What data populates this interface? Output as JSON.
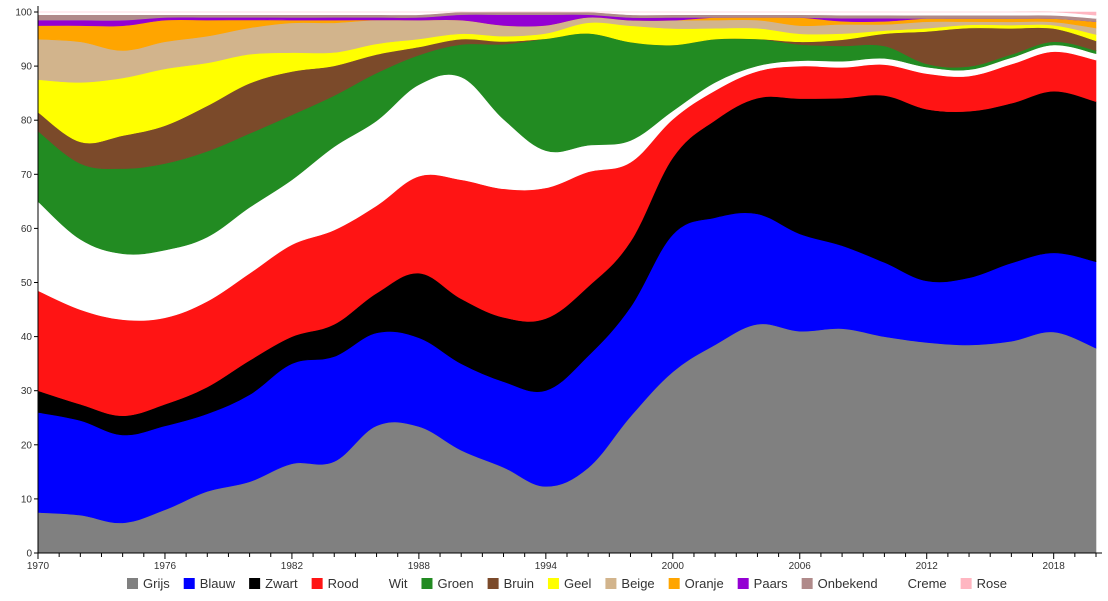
{
  "chart_data": {
    "type": "area",
    "stacked": true,
    "normalized_percent": true,
    "ylim": [
      0,
      100
    ],
    "y_ticks": [
      0,
      10,
      20,
      30,
      40,
      50,
      60,
      70,
      80,
      90,
      100
    ],
    "x_ticks": [
      1970,
      1976,
      1982,
      1988,
      1994,
      2000,
      2006,
      2012,
      2018
    ],
    "xlim": [
      1970,
      2020
    ],
    "grid": false,
    "legend_position": "bottom",
    "x": [
      1970,
      1972,
      1974,
      1976,
      1978,
      1980,
      1982,
      1984,
      1986,
      1988,
      1990,
      1992,
      1994,
      1996,
      1998,
      2000,
      2002,
      2004,
      2006,
      2008,
      2010,
      2012,
      2014,
      2016,
      2018,
      2020
    ],
    "series": [
      {
        "name": "Grijs",
        "color": "#808080",
        "values": [
          7.5,
          7,
          5.5,
          8,
          11.5,
          13.5,
          16.5,
          17,
          24,
          23.5,
          19,
          16,
          12.5,
          16,
          25,
          33,
          38.5,
          42.5,
          41,
          36.5,
          35,
          32.5,
          32.5,
          32.5,
          33.5,
          32
        ]
      },
      {
        "name": "Blauw",
        "color": "#0000ff",
        "values": [
          18.5,
          17.5,
          16,
          15.5,
          14.5,
          16.5,
          18.5,
          19.5,
          17.5,
          16.5,
          16,
          16,
          18,
          21,
          20,
          25,
          23.5,
          20.5,
          18,
          13.5,
          12,
          9.5,
          10.5,
          12,
          12,
          13.5
        ]
      },
      {
        "name": "Zwart",
        "color": "#000000",
        "values": [
          4,
          3,
          3.5,
          4,
          5,
          6.5,
          5,
          6,
          7.5,
          12,
          12,
          12,
          13.5,
          13,
          12,
          14,
          18,
          21.5,
          25,
          24,
          27,
          26.5,
          26,
          24.5,
          24.5,
          25
        ]
      },
      {
        "name": "Rood",
        "color": "#ff1414",
        "values": [
          18.5,
          17.5,
          17.5,
          16,
          16,
          16.5,
          17,
          17.5,
          16.5,
          18,
          22,
          24,
          24.5,
          21.5,
          14.5,
          7,
          5.5,
          5,
          6,
          5,
          5,
          5.5,
          5.5,
          6,
          6,
          6.5
        ]
      },
      {
        "name": "Wit",
        "color": "#ffffff",
        "values": [
          16.5,
          13,
          12,
          12.5,
          12,
          12.5,
          12,
          15.5,
          16,
          17,
          19,
          13,
          7,
          5,
          4,
          1.5,
          1.5,
          1,
          1,
          1,
          1,
          1,
          1,
          1,
          1,
          1
        ]
      },
      {
        "name": "Groen",
        "color": "#228b22",
        "values": [
          13,
          14,
          15.5,
          16,
          16,
          14,
          12,
          9.5,
          9,
          5.5,
          6,
          14,
          21,
          21,
          18,
          12,
          8,
          5,
          3,
          2.5,
          2,
          0.5,
          0.5,
          0.5,
          0.5,
          0.5
        ]
      },
      {
        "name": "Bruin",
        "color": "#7b4a2a",
        "values": [
          3.5,
          4,
          6,
          7,
          8.5,
          9.5,
          8,
          5.5,
          3.5,
          1.5,
          1,
          0.5,
          0,
          0,
          0,
          0,
          0,
          0,
          0.5,
          1,
          2,
          5,
          6,
          4,
          2,
          1.5
        ]
      },
      {
        "name": "Geel",
        "color": "#ffff00",
        "values": [
          6,
          11,
          10.5,
          10.5,
          8,
          5.5,
          3.5,
          2.5,
          2,
          1.5,
          1,
          1,
          1,
          2,
          3,
          3,
          2,
          2,
          1.5,
          1,
          0.5,
          0.5,
          0.5,
          0.5,
          0.5,
          1
        ]
      },
      {
        "name": "Beige",
        "color": "#d2b48c",
        "values": [
          7.5,
          7.5,
          5,
          5,
          5,
          5,
          5.5,
          5.5,
          4.5,
          3.5,
          2.5,
          2,
          1.5,
          1,
          1,
          1.5,
          1.5,
          1.5,
          1.5,
          1.5,
          1,
          1,
          0.5,
          0.5,
          0.5,
          1
        ]
      },
      {
        "name": "Oranje",
        "color": "#ffa500",
        "values": [
          2.5,
          3,
          4.5,
          4,
          3,
          1.5,
          0.5,
          0.5,
          0,
          0,
          0,
          0,
          0,
          0,
          0,
          0,
          0.5,
          0.5,
          1.5,
          0.5,
          0.5,
          0.5,
          0.5,
          0.5,
          0.5,
          1
        ]
      },
      {
        "name": "Paars",
        "color": "#9400d3",
        "values": [
          1,
          1,
          1,
          0.5,
          0.5,
          0.5,
          0.5,
          0.5,
          0.5,
          0.5,
          1,
          2,
          2,
          0.5,
          0.5,
          0.5,
          0,
          0,
          0,
          0.5,
          0.5,
          0,
          0,
          0,
          0,
          0
        ]
      },
      {
        "name": "Onbekend",
        "color": "#b08a8a",
        "values": [
          1,
          1,
          1,
          0.5,
          0.5,
          0.5,
          0.5,
          0.5,
          0.5,
          0.5,
          0.5,
          0.5,
          0.5,
          0.5,
          0.5,
          0.5,
          0.5,
          0.5,
          0.5,
          0.5,
          0.5,
          0.5,
          0.5,
          0.5,
          0.5,
          0.5
        ]
      },
      {
        "name": "Creme",
        "color": "#ffffff",
        "values": [
          0.5,
          0.5,
          0.5,
          0.5,
          0.5,
          0.5,
          0.5,
          0.5,
          0.5,
          0.5,
          0,
          0,
          0,
          0,
          0.5,
          0.5,
          0.5,
          0.5,
          0.5,
          0.5,
          0.5,
          0.5,
          0.5,
          0.5,
          0.5,
          0.5
        ]
      },
      {
        "name": "Rose",
        "color": "#ffb6c1",
        "values": [
          0,
          0,
          0,
          0,
          0,
          0,
          0,
          0,
          0,
          0,
          0,
          0,
          0,
          0,
          0,
          0,
          0,
          0,
          0,
          0,
          0,
          0,
          0,
          0,
          0,
          0.5
        ]
      }
    ]
  }
}
